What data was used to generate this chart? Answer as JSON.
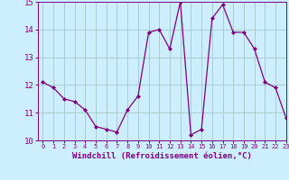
{
  "x": [
    0,
    1,
    2,
    3,
    4,
    5,
    6,
    7,
    8,
    9,
    10,
    11,
    12,
    13,
    14,
    15,
    16,
    17,
    18,
    19,
    20,
    21,
    22,
    23
  ],
  "y": [
    12.1,
    11.9,
    11.5,
    11.4,
    11.1,
    10.5,
    10.4,
    10.3,
    11.1,
    11.6,
    13.9,
    14.0,
    13.3,
    15.0,
    10.2,
    10.4,
    14.4,
    14.9,
    13.9,
    13.9,
    13.3,
    12.1,
    11.9,
    10.8
  ],
  "line_color": "#800080",
  "marker": "D",
  "marker_size": 2.0,
  "bg_color": "#cceeff",
  "grid_color": "#aacccc",
  "xlabel": "Windchill (Refroidissement éolien,°C)",
  "tick_color": "#800080",
  "ylim": [
    10,
    15
  ],
  "xlim": [
    -0.5,
    23
  ],
  "yticks": [
    10,
    11,
    12,
    13,
    14,
    15
  ],
  "xticks": [
    0,
    1,
    2,
    3,
    4,
    5,
    6,
    7,
    8,
    9,
    10,
    11,
    12,
    13,
    14,
    15,
    16,
    17,
    18,
    19,
    20,
    21,
    22,
    23
  ],
  "xtick_fontsize": 5.0,
  "ytick_fontsize": 6.5,
  "xlabel_fontsize": 6.5
}
